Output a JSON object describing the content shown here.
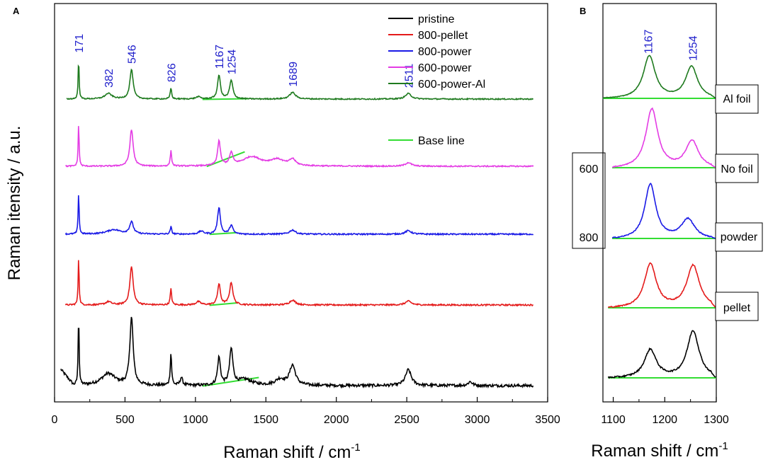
{
  "chart_data": [
    {
      "panel": "A",
      "type": "line",
      "xlabel": "Raman shift / cm",
      "xlabel_sup": "-1",
      "ylabel": "Raman itensity / a.u.",
      "xlim": [
        0,
        3500
      ],
      "xticks": [
        0,
        500,
        1000,
        1500,
        2000,
        2500,
        3000,
        3500
      ],
      "y_ticks_shown": false,
      "peak_annotations": [
        {
          "label": "171",
          "x": 171,
          "rise": 68
        },
        {
          "label": "382",
          "x": 382,
          "rise": 28
        },
        {
          "label": "546",
          "x": 546,
          "rise": 70
        },
        {
          "label": "826",
          "x": 826,
          "rise": 38
        },
        {
          "label": "1167",
          "x": 1167,
          "rise": 68
        },
        {
          "label": "1254",
          "x": 1254,
          "rise": 52
        },
        {
          "label": "1689",
          "x": 1689,
          "rise": 26
        },
        {
          "label": "2511",
          "x": 2511,
          "rise": 22
        }
      ],
      "legend": {
        "placement": "top-right",
        "entries": [
          {
            "name": "pristine",
            "color": "#000000"
          },
          {
            "name": "800-pellet",
            "color": "#e41a1a"
          },
          {
            "name": "800-power",
            "color": "#1a1ae6"
          },
          {
            "name": "600-power",
            "color": "#e43ce4"
          },
          {
            "name": "600-power-Al",
            "color": "#1e7a1e"
          }
        ],
        "baseline_entry": {
          "name": "Base line",
          "color": "#33dd33"
        }
      },
      "series": [
        {
          "name": "pristine",
          "color": "#000000",
          "offset": 0,
          "noise": 0.7,
          "peaks": [
            [
              171,
              4,
              18
            ],
            [
              382,
              60,
              3
            ],
            [
              546,
              14,
              17
            ],
            [
              826,
              6,
              8
            ],
            [
              900,
              10,
              2
            ],
            [
              1167,
              12,
              7
            ],
            [
              1254,
              14,
              9
            ],
            [
              1350,
              60,
              1.5
            ],
            [
              1600,
              40,
              1.5
            ],
            [
              1689,
              25,
              5
            ],
            [
              2511,
              25,
              4
            ],
            [
              2950,
              18,
              1
            ]
          ],
          "start_bump": [
            50,
            4
          ],
          "baseline": [
            1050,
            1450
          ]
        },
        {
          "name": "800-pellet",
          "color": "#e41a1a",
          "offset": 1,
          "noise": 0.45,
          "peaks": [
            [
              171,
              4,
              15
            ],
            [
              382,
              25,
              1
            ],
            [
              546,
              14,
              12
            ],
            [
              826,
              6,
              5
            ],
            [
              1020,
              20,
              1
            ],
            [
              1167,
              12,
              6.5
            ],
            [
              1254,
              14,
              7
            ],
            [
              1689,
              25,
              1.5
            ],
            [
              2511,
              25,
              1.2
            ]
          ],
          "baseline": [
            1100,
            1300
          ]
        },
        {
          "name": "800-power",
          "color": "#1a1ae6",
          "offset": 2,
          "noise": 0.45,
          "peaks": [
            [
              171,
              4,
              14
            ],
            [
              420,
              60,
              1.5
            ],
            [
              546,
              16,
              4
            ],
            [
              826,
              6,
              2.5
            ],
            [
              1040,
              20,
              1
            ],
            [
              1167,
              12,
              9
            ],
            [
              1254,
              14,
              3
            ],
            [
              1689,
              25,
              1.4
            ],
            [
              2511,
              25,
              1.2
            ]
          ],
          "baseline": [
            1100,
            1290
          ]
        },
        {
          "name": "600-power",
          "color": "#e43ce4",
          "offset": 3,
          "noise": 0.4,
          "peaks": [
            [
              171,
              4,
              14
            ],
            [
              546,
              14,
              12
            ],
            [
              826,
              6,
              5
            ],
            [
              1167,
              12,
              8
            ],
            [
              1254,
              14,
              4
            ],
            [
              1400,
              80,
              3
            ],
            [
              1580,
              60,
              2
            ],
            [
              1689,
              25,
              2
            ],
            [
              2511,
              25,
              1.2
            ]
          ],
          "baseline": [
            1080,
            1350
          ]
        },
        {
          "name": "600-power-Al",
          "color": "#1e7a1e",
          "offset": 4,
          "noise": 0.3,
          "peaks": [
            [
              171,
              4,
              11
            ],
            [
              382,
              30,
              1.5
            ],
            [
              546,
              14,
              8
            ],
            [
              826,
              6,
              3
            ],
            [
              1020,
              20,
              0.6
            ],
            [
              1167,
              12,
              6.5
            ],
            [
              1254,
              14,
              5
            ],
            [
              1689,
              25,
              1.8
            ],
            [
              2511,
              25,
              1.5
            ]
          ],
          "baseline": [
            1050,
            1380
          ]
        }
      ]
    },
    {
      "panel": "B",
      "type": "line",
      "xlabel": "Raman shift / cm",
      "xlabel_sup": "-1",
      "xlim": [
        1080,
        1300
      ],
      "xticks": [
        1100,
        1200,
        1300
      ],
      "peak_annotations": [
        {
          "label": "1167",
          "x": 1167
        },
        {
          "label": "1254",
          "x": 1254
        }
      ],
      "series": [
        {
          "name": "pristine",
          "color": "#000000",
          "offset": 0,
          "noise": 0.02,
          "x_start": 1090,
          "peaks": [
            [
              1172,
              14,
              0.37
            ],
            [
              1255,
              14,
              0.62
            ]
          ]
        },
        {
          "name": "800-pellet",
          "color": "#e41a1a",
          "offset": 1,
          "noise": 0.015,
          "x_start": 1090,
          "peaks": [
            [
              1172,
              14,
              0.58
            ],
            [
              1255,
              15,
              0.56
            ]
          ]
        },
        {
          "name": "800-power",
          "color": "#1a1ae6",
          "offset": 2,
          "noise": 0.012,
          "x_start": 1098,
          "peaks": [
            [
              1172,
              13,
              0.72
            ],
            [
              1245,
              16,
              0.26
            ]
          ]
        },
        {
          "name": "600-power",
          "color": "#e43ce4",
          "offset": 3,
          "noise": 0.012,
          "x_start": 1098,
          "peaks": [
            [
              1175,
              14,
              0.78
            ],
            [
              1253,
              15,
              0.36
            ]
          ]
        },
        {
          "name": "600-power-Al",
          "color": "#1e7a1e",
          "offset": 4,
          "noise": 0.008,
          "x_start": 1080,
          "peaks": [
            [
              1170,
              14,
              0.56
            ],
            [
              1252,
              14,
              0.42
            ]
          ]
        }
      ],
      "side_labels": [
        "Al foil",
        "No foil",
        "powder",
        "pellet"
      ],
      "left_box_labels": [
        "600",
        "800"
      ]
    }
  ],
  "panel_labels": [
    "A",
    "B"
  ],
  "annotation_color": "#2222cc",
  "baseline_color": "#33dd33"
}
